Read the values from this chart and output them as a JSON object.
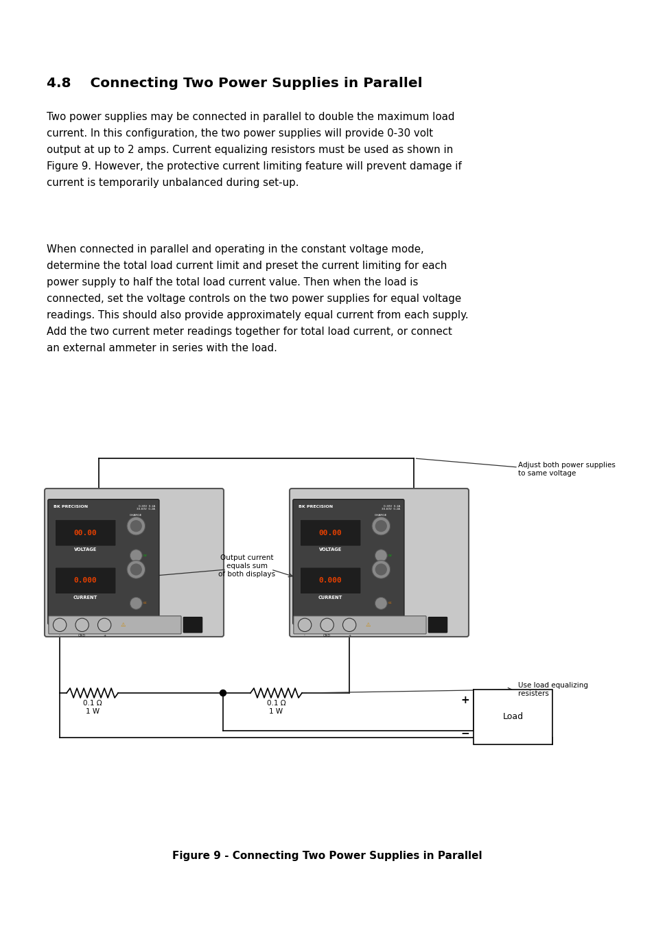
{
  "title": "4.8    Connecting Two Power Supplies in Parallel",
  "title_fontsize": 14.5,
  "body_fontsize": 10.8,
  "body_linespacing": 1.75,
  "paragraph1": "Two power supplies may be connected in parallel to double the maximum load\ncurrent. In this configuration, the two power supplies will provide 0-30 volt\noutput at up to 2 amps. Current equalizing resistors must be used as shown in\nFigure 9. However, the protective current limiting feature will prevent damage if\ncurrent is temporarily unbalanced during set-up.",
  "paragraph2": "When connected in parallel and operating in the constant voltage mode,\ndetermine the total load current limit and preset the current limiting for each\npower supply to half the total load current value. Then when the load is\nconnected, set the voltage controls on the two power supplies for equal voltage\nreadings. This should also provide approximately equal current from each supply.\nAdd the two current meter readings together for total load current, or connect\nan external ammeter in series with the load.",
  "figure_caption": "Figure 9 - Connecting Two Power Supplies in Parallel",
  "bg_color": "#ffffff",
  "text_color": "#000000",
  "ps_body_color": "#c8c8c8",
  "ps_panel_color": "#404040",
  "ps_display_color": "#1e1e1e",
  "ps_digit_color": "#e84000",
  "ps_knob_color": "#888888",
  "ps_term_color": "#b0b0b0",
  "wire_color": "#000000",
  "ann_color": "#333333"
}
